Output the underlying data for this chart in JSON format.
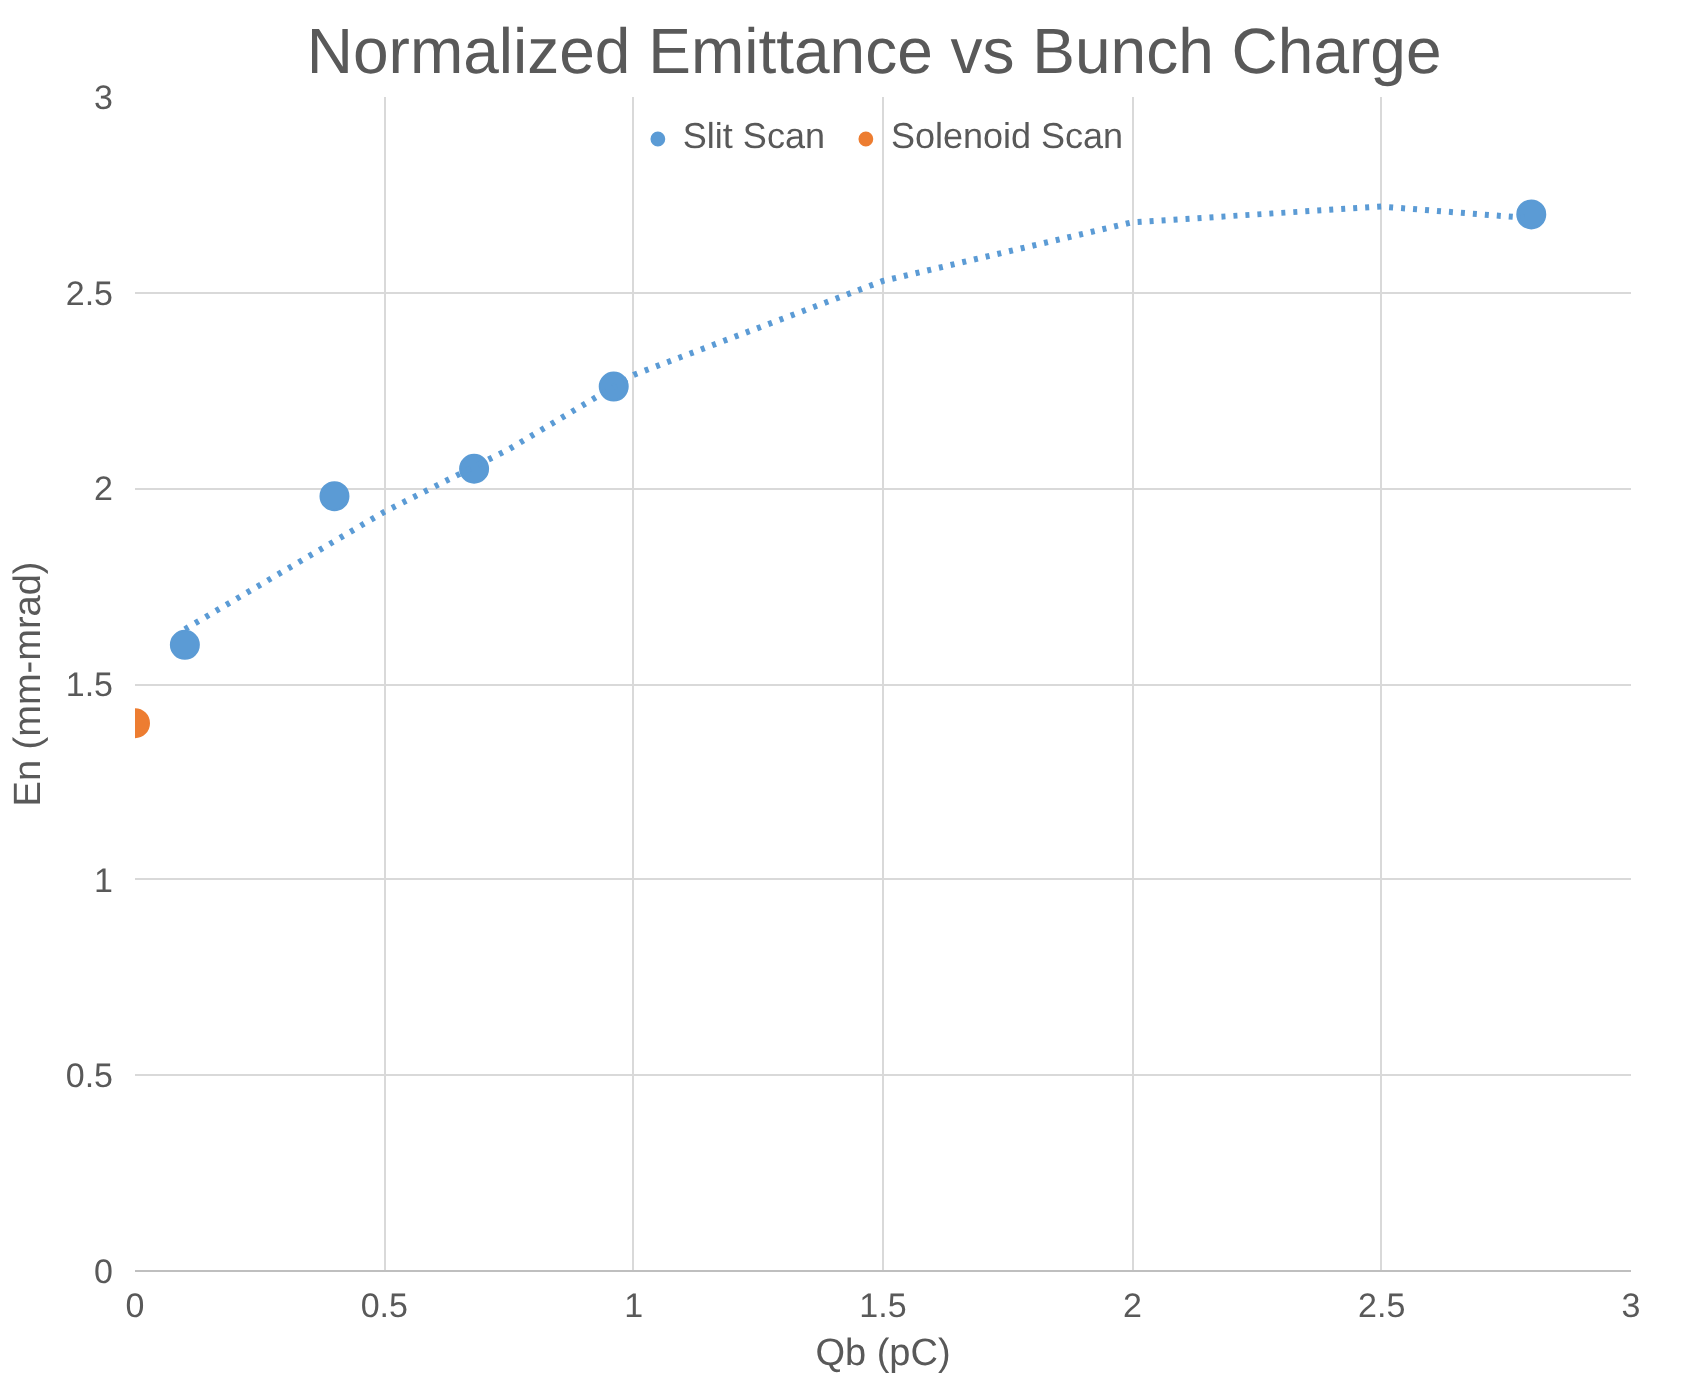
{
  "chart_data": {
    "type": "scatter",
    "title": "Normalized Emittance  vs Bunch Charge",
    "xlabel": "Qb (pC)",
    "ylabel": "En (mm-mrad)",
    "series": [
      {
        "name": "Slit Scan",
        "color": "#5b9bd5",
        "x": [
          0.1,
          0.4,
          0.68,
          0.96,
          2.8
        ],
        "values": [
          1.6,
          1.98,
          2.05,
          2.26,
          2.7
        ]
      },
      {
        "name": "Solenoid Scan",
        "color": "#ed7d31",
        "x": [
          0
        ],
        "values": [
          1.4
        ]
      },
      {
        "type": "line",
        "color": "#5b9bd5",
        "line_style": "dotted",
        "marker": "none",
        "x": [
          0.1,
          0.5,
          0.75,
          1,
          1.5,
          2,
          2.5,
          2.8
        ],
        "values": [
          1.64,
          1.94,
          2.1,
          2.29,
          2.53,
          2.68,
          2.72,
          2.69
        ]
      }
    ],
    "xlim": [
      0,
      3
    ],
    "ylim": [
      0,
      3
    ],
    "xticks": [
      0,
      0.5,
      1,
      1.5,
      2,
      2.5,
      3
    ],
    "yticks": [
      0,
      0.5,
      1,
      1.5,
      2,
      2.5,
      3
    ],
    "grid": true,
    "legend": "top",
    "marker": "circle"
  }
}
